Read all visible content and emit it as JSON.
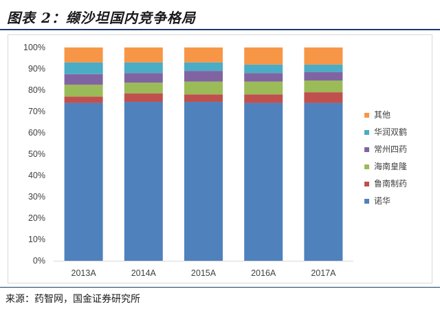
{
  "title": "图表 2：缬沙坦国内竞争格局",
  "source": "来源：药智网，国金证券研究所",
  "chart_data": {
    "type": "bar",
    "stacked": true,
    "percent": true,
    "categories": [
      "2013A",
      "2014A",
      "2015A",
      "2016A",
      "2017A"
    ],
    "y_ticks": [
      "0%",
      "10%",
      "20%",
      "30%",
      "40%",
      "50%",
      "60%",
      "70%",
      "80%",
      "90%",
      "100%"
    ],
    "ylim": [
      0,
      100
    ],
    "grid": false,
    "legend_position": "right",
    "series": [
      {
        "name": "诺华",
        "color": "#4f81bd",
        "values": [
          74,
          74.5,
          74.5,
          74,
          74
        ]
      },
      {
        "name": "鲁南制药",
        "color": "#c0504d",
        "values": [
          3,
          4,
          3.5,
          4,
          5
        ]
      },
      {
        "name": "海南皇隆",
        "color": "#9bbb59",
        "values": [
          5.5,
          5,
          6,
          6,
          5.5
        ]
      },
      {
        "name": "常州四药",
        "color": "#8064a2",
        "values": [
          5,
          4.5,
          5,
          4,
          4
        ]
      },
      {
        "name": "华润双鹤",
        "color": "#4bacc6",
        "values": [
          5.5,
          5,
          4,
          4,
          3.5
        ]
      },
      {
        "name": "其他",
        "color": "#f79646",
        "values": [
          7,
          7,
          7,
          8,
          8
        ]
      }
    ]
  }
}
